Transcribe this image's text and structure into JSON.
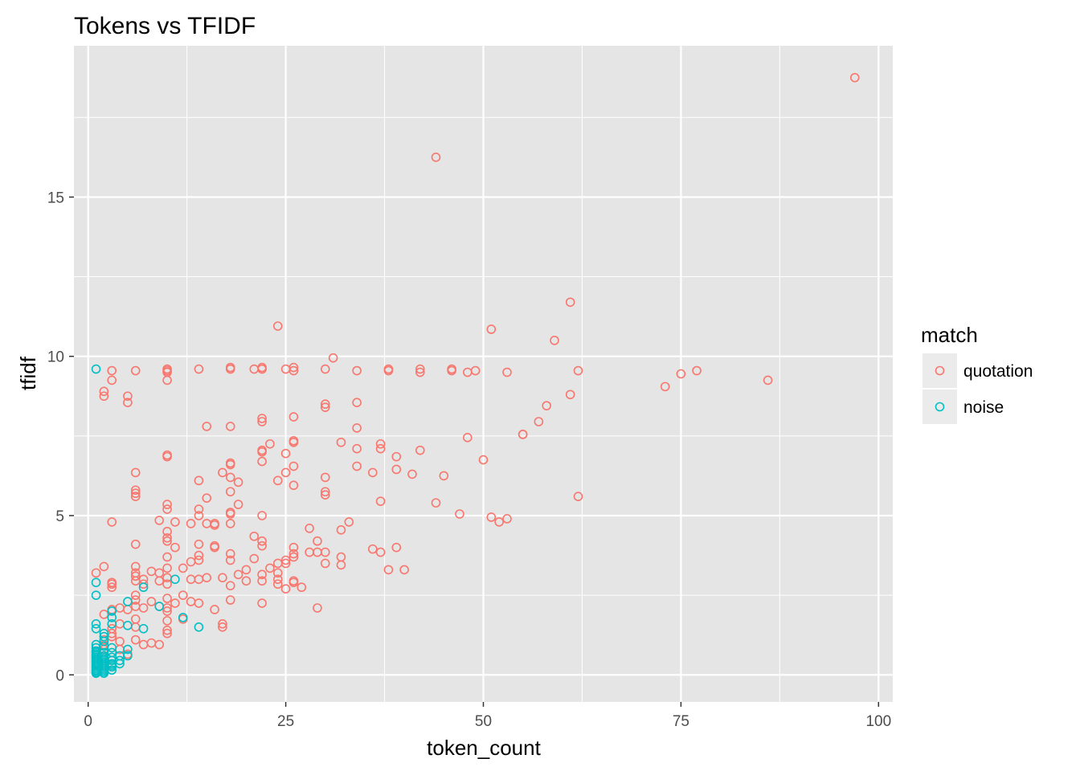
{
  "colors": {
    "panel_bg": "#e5e5e5",
    "grid": "#ffffff",
    "axis_text": "#4d4d4d",
    "tick": "#333333",
    "legend_key_bg": "#ebebeb"
  },
  "chart_data": {
    "type": "scatter",
    "title": "Tokens vs TFIDF",
    "xlabel": "token_count",
    "ylabel": "tfidf",
    "xlim": [
      -1.8,
      101.8
    ],
    "ylim": [
      -0.85,
      19.75
    ],
    "x_ticks": [
      0,
      25,
      50,
      75,
      100
    ],
    "y_ticks": [
      0,
      5,
      10,
      15
    ],
    "x_tick_labels": [
      "0",
      "25",
      "50",
      "75",
      "100"
    ],
    "y_tick_labels": [
      "0",
      "5",
      "10",
      "15"
    ],
    "grid": true,
    "legend": {
      "title": "match",
      "position": "right"
    },
    "series": [
      {
        "name": "quotation",
        "color": "#F8766D",
        "points": [
          [
            97,
            18.75
          ],
          [
            44,
            16.25
          ],
          [
            24,
            10.95
          ],
          [
            61,
            11.7
          ],
          [
            51,
            10.85
          ],
          [
            59,
            10.5
          ],
          [
            31,
            9.95
          ],
          [
            2,
            8.9
          ],
          [
            2,
            8.75
          ],
          [
            3,
            9.25
          ],
          [
            3,
            9.55
          ],
          [
            6,
            9.55
          ],
          [
            5,
            8.75
          ],
          [
            5,
            8.55
          ],
          [
            10,
            9.55
          ],
          [
            10,
            9.6
          ],
          [
            10,
            9.5
          ],
          [
            10,
            9.25
          ],
          [
            14,
            9.6
          ],
          [
            18,
            9.6
          ],
          [
            18,
            9.65
          ],
          [
            21,
            9.6
          ],
          [
            22,
            9.6
          ],
          [
            22,
            9.65
          ],
          [
            25,
            9.6
          ],
          [
            26,
            9.55
          ],
          [
            26,
            9.65
          ],
          [
            30,
            9.6
          ],
          [
            34,
            9.55
          ],
          [
            38,
            9.6
          ],
          [
            38,
            9.55
          ],
          [
            42,
            9.6
          ],
          [
            42,
            9.5
          ],
          [
            46,
            9.55
          ],
          [
            46,
            9.6
          ],
          [
            48,
            9.5
          ],
          [
            49,
            9.55
          ],
          [
            53,
            9.5
          ],
          [
            62,
            9.55
          ],
          [
            61,
            8.8
          ],
          [
            73,
            9.05
          ],
          [
            75,
            9.45
          ],
          [
            77,
            9.55
          ],
          [
            86,
            9.25
          ],
          [
            58,
            8.45
          ],
          [
            57,
            7.95
          ],
          [
            55,
            7.55
          ],
          [
            55,
            7.55
          ],
          [
            48,
            7.45
          ],
          [
            30,
            8.5
          ],
          [
            30,
            8.4
          ],
          [
            34,
            8.55
          ],
          [
            26,
            8.1
          ],
          [
            22,
            8.05
          ],
          [
            22,
            7.95
          ],
          [
            15,
            7.8
          ],
          [
            18,
            7.8
          ],
          [
            34,
            7.75
          ],
          [
            23,
            7.25
          ],
          [
            22,
            7.05
          ],
          [
            22,
            7.0
          ],
          [
            26,
            7.35
          ],
          [
            26,
            7.3
          ],
          [
            32,
            7.3
          ],
          [
            34,
            7.1
          ],
          [
            37,
            7.25
          ],
          [
            37,
            7.1
          ],
          [
            42,
            7.05
          ],
          [
            39,
            6.85
          ],
          [
            25,
            6.95
          ],
          [
            22,
            6.7
          ],
          [
            10,
            6.85
          ],
          [
            10,
            6.9
          ],
          [
            6,
            6.35
          ],
          [
            18,
            6.65
          ],
          [
            18,
            6.6
          ],
          [
            26,
            6.55
          ],
          [
            34,
            6.55
          ],
          [
            36,
            6.35
          ],
          [
            39,
            6.45
          ],
          [
            41,
            6.3
          ],
          [
            50,
            6.75
          ],
          [
            45,
            6.25
          ],
          [
            30,
            6.2
          ],
          [
            24,
            6.1
          ],
          [
            25,
            6.35
          ],
          [
            17,
            6.35
          ],
          [
            14,
            6.1
          ],
          [
            18,
            6.2
          ],
          [
            19,
            6.05
          ],
          [
            26,
            5.95
          ],
          [
            6,
            5.8
          ],
          [
            6,
            5.7
          ],
          [
            6,
            5.6
          ],
          [
            15,
            5.55
          ],
          [
            18,
            5.75
          ],
          [
            30,
            5.75
          ],
          [
            30,
            5.65
          ],
          [
            37,
            5.45
          ],
          [
            44,
            5.4
          ],
          [
            47,
            5.05
          ],
          [
            51,
            4.95
          ],
          [
            52,
            4.8
          ],
          [
            53,
            4.9
          ],
          [
            62,
            5.6
          ],
          [
            10,
            5.35
          ],
          [
            10,
            5.2
          ],
          [
            14,
            5.2
          ],
          [
            14,
            5.0
          ],
          [
            19,
            5.35
          ],
          [
            18,
            5.1
          ],
          [
            18,
            5.05
          ],
          [
            22,
            5.0
          ],
          [
            3,
            4.8
          ],
          [
            9,
            4.85
          ],
          [
            11,
            4.8
          ],
          [
            13,
            4.75
          ],
          [
            15,
            4.75
          ],
          [
            16,
            4.75
          ],
          [
            16,
            4.7
          ],
          [
            18,
            4.75
          ],
          [
            10,
            4.5
          ],
          [
            10,
            4.3
          ],
          [
            10,
            4.2
          ],
          [
            6,
            4.1
          ],
          [
            11,
            4.0
          ],
          [
            14,
            4.1
          ],
          [
            16,
            4.0
          ],
          [
            16,
            4.05
          ],
          [
            21,
            4.35
          ],
          [
            22,
            4.2
          ],
          [
            22,
            4.05
          ],
          [
            26,
            4.0
          ],
          [
            26,
            3.8
          ],
          [
            28,
            4.6
          ],
          [
            32,
            4.55
          ],
          [
            33,
            4.8
          ],
          [
            29,
            4.2
          ],
          [
            36,
            3.95
          ],
          [
            37,
            3.85
          ],
          [
            39,
            4.0
          ],
          [
            38,
            3.3
          ],
          [
            40,
            3.3
          ],
          [
            28,
            3.85
          ],
          [
            29,
            3.85
          ],
          [
            30,
            3.85
          ],
          [
            30,
            3.5
          ],
          [
            32,
            3.7
          ],
          [
            32,
            3.45
          ],
          [
            24,
            3.5
          ],
          [
            25,
            3.6
          ],
          [
            25,
            3.5
          ],
          [
            26,
            3.7
          ],
          [
            23,
            3.35
          ],
          [
            21,
            3.65
          ],
          [
            20,
            3.3
          ],
          [
            18,
            3.8
          ],
          [
            18,
            3.6
          ],
          [
            14,
            3.75
          ],
          [
            14,
            3.6
          ],
          [
            13,
            3.55
          ],
          [
            12,
            3.35
          ],
          [
            10,
            3.7
          ],
          [
            10,
            3.35
          ],
          [
            9,
            3.2
          ],
          [
            8,
            3.25
          ],
          [
            6,
            3.4
          ],
          [
            6,
            3.2
          ],
          [
            6,
            3.1
          ],
          [
            6,
            2.95
          ],
          [
            3,
            2.9
          ],
          [
            3,
            2.85
          ],
          [
            3,
            2.75
          ],
          [
            2,
            3.4
          ],
          [
            1,
            3.2
          ],
          [
            7,
            3.0
          ],
          [
            7,
            2.85
          ],
          [
            9,
            2.95
          ],
          [
            10,
            3.05
          ],
          [
            10,
            2.85
          ],
          [
            13,
            3.0
          ],
          [
            14,
            3.0
          ],
          [
            15,
            3.05
          ],
          [
            17,
            3.05
          ],
          [
            18,
            2.8
          ],
          [
            19,
            3.15
          ],
          [
            20,
            2.95
          ],
          [
            22,
            3.15
          ],
          [
            22,
            2.95
          ],
          [
            24,
            3.2
          ],
          [
            24,
            3.0
          ],
          [
            24,
            2.85
          ],
          [
            25,
            2.7
          ],
          [
            26,
            2.95
          ],
          [
            26,
            2.9
          ],
          [
            27,
            2.75
          ],
          [
            22,
            2.25
          ],
          [
            18,
            2.35
          ],
          [
            16,
            2.05
          ],
          [
            14,
            2.25
          ],
          [
            13,
            2.3
          ],
          [
            12,
            2.5
          ],
          [
            11,
            2.25
          ],
          [
            10,
            2.4
          ],
          [
            10,
            2.1
          ],
          [
            10,
            2.0
          ],
          [
            9,
            2.15
          ],
          [
            8,
            2.3
          ],
          [
            7,
            2.1
          ],
          [
            6,
            2.5
          ],
          [
            6,
            2.35
          ],
          [
            6,
            2.15
          ],
          [
            5,
            2.05
          ],
          [
            4,
            2.1
          ],
          [
            3,
            2.05
          ],
          [
            2,
            1.9
          ],
          [
            29,
            2.1
          ],
          [
            17,
            1.5
          ],
          [
            17,
            1.6
          ],
          [
            12,
            1.75
          ],
          [
            10,
            1.7
          ],
          [
            10,
            1.4
          ],
          [
            10,
            1.3
          ],
          [
            8,
            1.0
          ],
          [
            9,
            0.95
          ],
          [
            7,
            0.95
          ],
          [
            6,
            1.1
          ],
          [
            6,
            1.5
          ],
          [
            6,
            1.75
          ],
          [
            4,
            1.05
          ],
          [
            4,
            0.8
          ],
          [
            3,
            1.45
          ],
          [
            3,
            1.3
          ],
          [
            3,
            1.2
          ],
          [
            2,
            1.1
          ],
          [
            2,
            0.95
          ],
          [
            2,
            0.8
          ],
          [
            4,
            1.6
          ],
          [
            5,
            0.65
          ]
        ]
      },
      {
        "name": "noise",
        "color": "#00BFC4",
        "points": [
          [
            1,
            9.6
          ],
          [
            1,
            2.9
          ],
          [
            1,
            2.5
          ],
          [
            7,
            2.75
          ],
          [
            11,
            3.0
          ],
          [
            9,
            2.15
          ],
          [
            12,
            1.8
          ],
          [
            14,
            1.5
          ],
          [
            5,
            2.3
          ],
          [
            5,
            1.55
          ],
          [
            7,
            1.45
          ],
          [
            3,
            2.0
          ],
          [
            3,
            1.8
          ],
          [
            3,
            1.6
          ],
          [
            1,
            1.6
          ],
          [
            1,
            1.45
          ],
          [
            2,
            1.3
          ],
          [
            2,
            1.2
          ],
          [
            2,
            1.05
          ],
          [
            2,
            0.9
          ],
          [
            3,
            0.85
          ],
          [
            3,
            0.7
          ],
          [
            3,
            0.55
          ],
          [
            3,
            0.45
          ],
          [
            3,
            0.35
          ],
          [
            4,
            0.6
          ],
          [
            4,
            0.45
          ],
          [
            4,
            0.35
          ],
          [
            5,
            0.8
          ],
          [
            5,
            0.6
          ],
          [
            1,
            0.95
          ],
          [
            1,
            0.85
          ],
          [
            1,
            0.75
          ],
          [
            1,
            0.65
          ],
          [
            1,
            0.55
          ],
          [
            1,
            0.45
          ],
          [
            1,
            0.35
          ],
          [
            1,
            0.25
          ],
          [
            1,
            0.15
          ],
          [
            1,
            0.08
          ],
          [
            1,
            0.05
          ],
          [
            1,
            0.2
          ],
          [
            1,
            0.3
          ],
          [
            1,
            0.4
          ],
          [
            1,
            0.5
          ],
          [
            2,
            0.7
          ],
          [
            2,
            0.6
          ],
          [
            2,
            0.5
          ],
          [
            2,
            0.4
          ],
          [
            2,
            0.3
          ],
          [
            2,
            0.2
          ],
          [
            2,
            0.15
          ],
          [
            2,
            0.1
          ],
          [
            2,
            0.25
          ],
          [
            2,
            0.35
          ],
          [
            2,
            0.45
          ],
          [
            2,
            0.55
          ],
          [
            3,
            0.25
          ],
          [
            3,
            0.15
          ],
          [
            3,
            0.3
          ],
          [
            1,
            0.6
          ],
          [
            1,
            0.7
          ],
          [
            1,
            0.12
          ],
          [
            2,
            0.05
          ]
        ]
      }
    ]
  }
}
